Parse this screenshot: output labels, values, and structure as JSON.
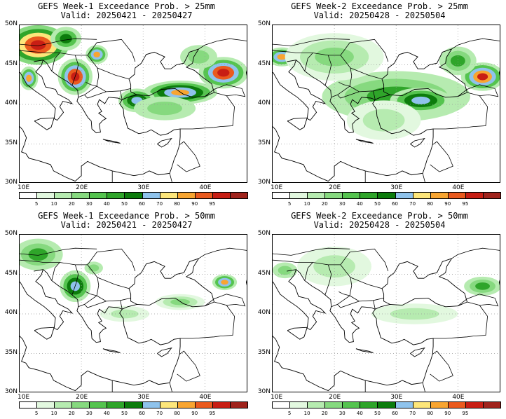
{
  "panels": [
    {
      "title": "GEFS Week-1 Exceedance Prob. > 25mm",
      "valid": "Valid: 20250421 - 20250427"
    },
    {
      "title": "GEFS Week-2 Exceedance Prob. > 25mm",
      "valid": "Valid: 20250428 - 20250504"
    },
    {
      "title": "GEFS Week-1 Exceedance Prob. > 50mm",
      "valid": "Valid: 20250421 - 20250427"
    },
    {
      "title": "GEFS Week-2 Exceedance Prob. > 50mm",
      "valid": "Valid: 20250428 - 20250504"
    }
  ],
  "lat_labels": [
    "50N",
    "45N",
    "40N",
    "35N",
    "30N"
  ],
  "lon_labels": [
    "10E",
    "20E",
    "30E",
    "40E"
  ],
  "colorbar": {
    "labels": [
      "5",
      "10",
      "20",
      "30",
      "40",
      "50",
      "60",
      "70",
      "80",
      "90",
      "95"
    ],
    "colors": [
      "#ffffff",
      "#e2f8df",
      "#b6ebb0",
      "#86d97f",
      "#55c44f",
      "#2fa52a",
      "#0c7c0c",
      "#8fc3ec",
      "#fde67a",
      "#f8a531",
      "#ea5a1e",
      "#c81e14",
      "#a0231c"
    ]
  }
}
